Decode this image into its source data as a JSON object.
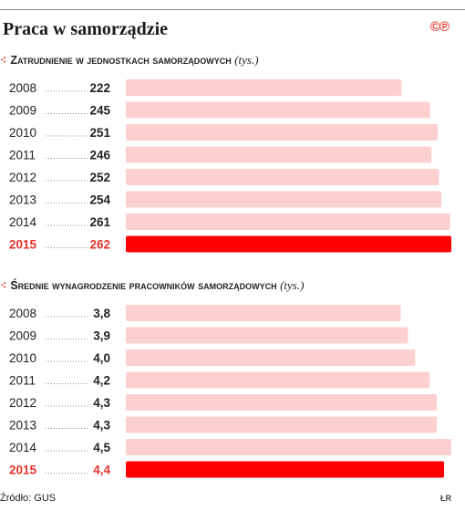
{
  "title": "Praca w samorządzie",
  "logo": "©℗",
  "source": "Źródło: GUS",
  "initials": "ŁR",
  "colors": {
    "bar": "#fdd0d0",
    "highlight_bar": "#ff0000",
    "highlight_text": "#e4332c",
    "text": "#222222"
  },
  "chart_data": [
    {
      "type": "bar",
      "orientation": "horizontal",
      "title": "Zatrudnienie w jednostkach samorządowych",
      "unit": "(tys.)",
      "categories": [
        "2008",
        "2009",
        "2010",
        "2011",
        "2012",
        "2013",
        "2014",
        "2015"
      ],
      "values": [
        222,
        245,
        251,
        246,
        252,
        254,
        261,
        262
      ],
      "value_labels": [
        "222",
        "245",
        "251",
        "246",
        "252",
        "254",
        "261",
        "262"
      ],
      "highlight": "2015"
    },
    {
      "type": "bar",
      "orientation": "horizontal",
      "title": "Średnie wynagrodzenie pracowników samorządowych",
      "unit": "(tys.)",
      "categories": [
        "2008",
        "2009",
        "2010",
        "2011",
        "2012",
        "2013",
        "2014",
        "2015"
      ],
      "values": [
        3.8,
        3.9,
        4.0,
        4.2,
        4.3,
        4.3,
        4.5,
        4.4
      ],
      "value_labels": [
        "3,8",
        "3,9",
        "4,0",
        "4,2",
        "4,3",
        "4,3",
        "4,5",
        "4,4"
      ],
      "highlight": "2015"
    }
  ]
}
